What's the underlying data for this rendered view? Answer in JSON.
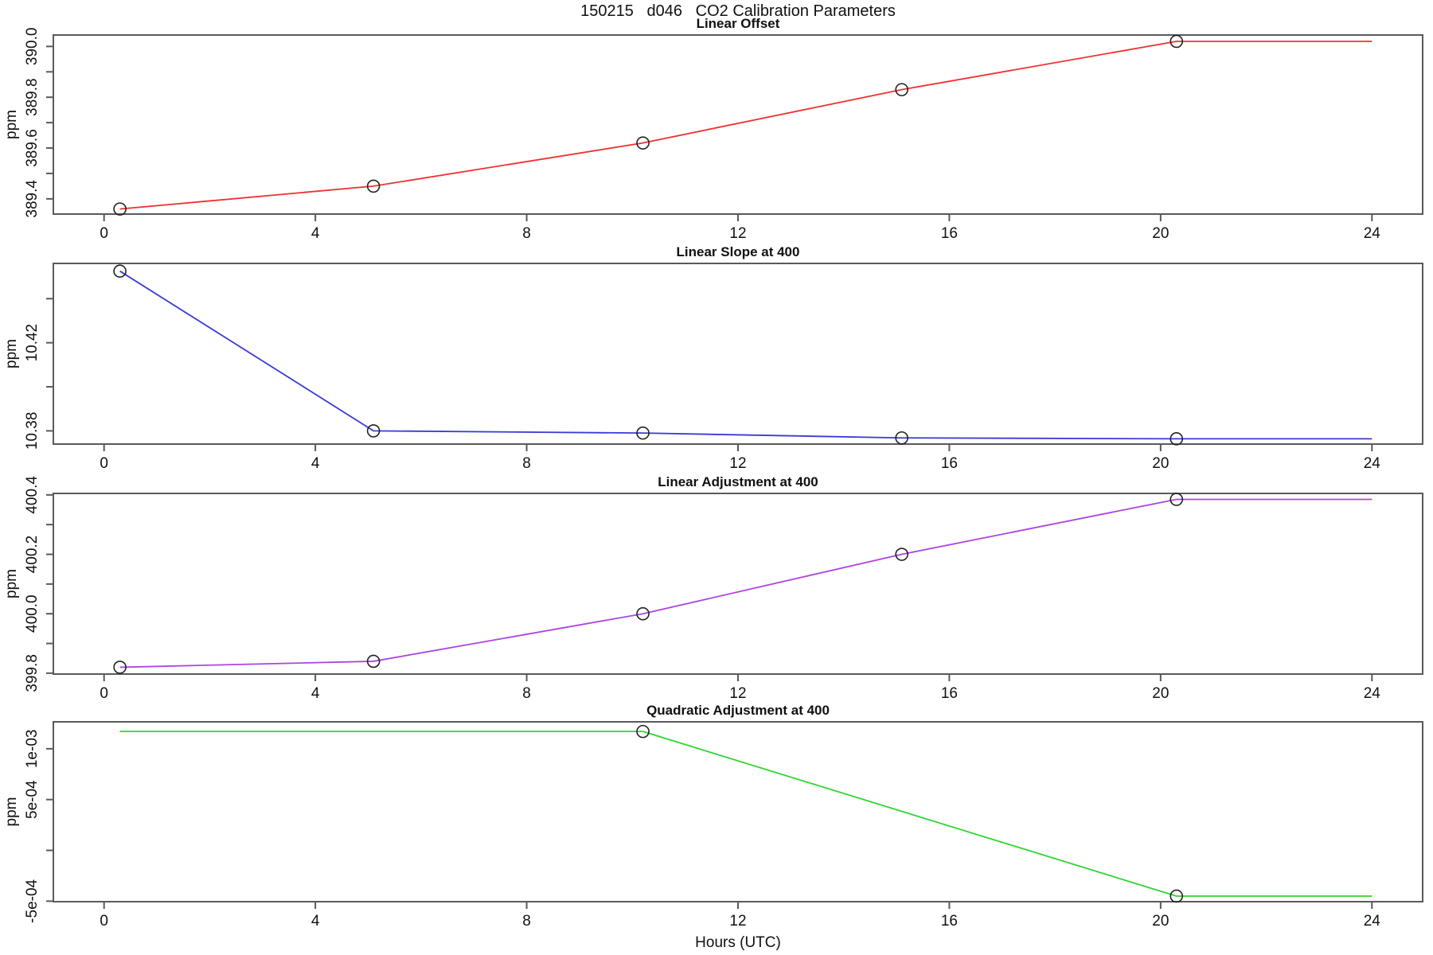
{
  "title": "150215   d046   CO2 Calibration Parameters",
  "xlabel": "Hours (UTC)",
  "colors": {
    "axis": "#5a5a5a",
    "text": "#111111",
    "marker": "#222222",
    "background": "#ffffff"
  },
  "chart_data": [
    {
      "type": "line",
      "title": "Linear Offset",
      "ylabel": "ppm",
      "color": "#f03030",
      "x": [
        0.3,
        5.1,
        10.2,
        15.1,
        20.3
      ],
      "y": [
        389.36,
        389.45,
        389.62,
        389.83,
        390.02
      ],
      "markers": [
        true,
        true,
        true,
        true,
        true
      ],
      "extend_to_x": 24,
      "xlim": [
        -0.96,
        24.96
      ],
      "ylim": [
        389.34,
        390.045
      ],
      "xticks": [
        {
          "v": 0,
          "label": "0"
        },
        {
          "v": 4,
          "label": "4"
        },
        {
          "v": 8,
          "label": "8"
        },
        {
          "v": 12,
          "label": "12"
        },
        {
          "v": 16,
          "label": "16"
        },
        {
          "v": 20,
          "label": "20"
        },
        {
          "v": 24,
          "label": "24"
        }
      ],
      "yticks": [
        {
          "v": 389.4,
          "label": "389.4"
        },
        {
          "v": 389.5,
          "label": ""
        },
        {
          "v": 389.6,
          "label": "389.6"
        },
        {
          "v": 389.7,
          "label": ""
        },
        {
          "v": 389.8,
          "label": "389.8"
        },
        {
          "v": 389.9,
          "label": ""
        },
        {
          "v": 390.0,
          "label": "390.0"
        }
      ]
    },
    {
      "type": "line",
      "title": "Linear Slope at 400",
      "ylabel": "ppm",
      "color": "#3a3ad6",
      "x": [
        0.3,
        5.1,
        10.2,
        15.1,
        20.3
      ],
      "y": [
        10.4525,
        10.38,
        10.379,
        10.3768,
        10.3764
      ],
      "markers": [
        true,
        true,
        true,
        true,
        true
      ],
      "extend_to_x": 24,
      "xlim": [
        -0.96,
        24.96
      ],
      "ylim": [
        10.374,
        10.456
      ],
      "xticks": [
        {
          "v": 0,
          "label": "0"
        },
        {
          "v": 4,
          "label": "4"
        },
        {
          "v": 8,
          "label": "8"
        },
        {
          "v": 12,
          "label": "12"
        },
        {
          "v": 16,
          "label": "16"
        },
        {
          "v": 20,
          "label": "20"
        },
        {
          "v": 24,
          "label": "24"
        }
      ],
      "yticks": [
        {
          "v": 10.38,
          "label": "10.38"
        },
        {
          "v": 10.4,
          "label": ""
        },
        {
          "v": 10.42,
          "label": "10.42"
        },
        {
          "v": 10.44,
          "label": ""
        }
      ]
    },
    {
      "type": "line",
      "title": "Linear Adjustment at 400",
      "ylabel": "ppm",
      "color": "#ad44e0",
      "x": [
        0.3,
        5.1,
        10.2,
        15.1,
        20.3
      ],
      "y": [
        399.82,
        399.84,
        400.0,
        400.2,
        400.385
      ],
      "markers": [
        true,
        true,
        true,
        true,
        true
      ],
      "extend_to_x": 24,
      "xlim": [
        -0.96,
        24.96
      ],
      "ylim": [
        399.797,
        400.405
      ],
      "xticks": [
        {
          "v": 0,
          "label": "0"
        },
        {
          "v": 4,
          "label": "4"
        },
        {
          "v": 8,
          "label": "8"
        },
        {
          "v": 12,
          "label": "12"
        },
        {
          "v": 16,
          "label": "16"
        },
        {
          "v": 20,
          "label": "20"
        },
        {
          "v": 24,
          "label": "24"
        }
      ],
      "yticks": [
        {
          "v": 399.8,
          "label": "399.8"
        },
        {
          "v": 399.9,
          "label": ""
        },
        {
          "v": 400.0,
          "label": "400.0"
        },
        {
          "v": 400.1,
          "label": ""
        },
        {
          "v": 400.2,
          "label": "400.2"
        },
        {
          "v": 400.3,
          "label": ""
        },
        {
          "v": 400.4,
          "label": "400.4"
        }
      ]
    },
    {
      "type": "line",
      "title": "Quadratic Adjustment at 400",
      "ylabel": "ppm",
      "color": "#30d430",
      "x": [
        0.3,
        10.2,
        20.3
      ],
      "y": [
        0.00117,
        0.00117,
        -0.00045
      ],
      "markers": [
        false,
        true,
        true
      ],
      "extend_to_x": 24,
      "xlim": [
        -0.96,
        24.96
      ],
      "ylim": [
        -0.000505,
        0.001265
      ],
      "xticks": [
        {
          "v": 0,
          "label": "0"
        },
        {
          "v": 4,
          "label": "4"
        },
        {
          "v": 8,
          "label": "8"
        },
        {
          "v": 12,
          "label": "12"
        },
        {
          "v": 16,
          "label": "16"
        },
        {
          "v": 20,
          "label": "20"
        },
        {
          "v": 24,
          "label": "24"
        }
      ],
      "yticks": [
        {
          "v": -0.0005,
          "label": "-5e-04"
        },
        {
          "v": 0,
          "label": ""
        },
        {
          "v": 0.0005,
          "label": "5e-04"
        },
        {
          "v": 0.001,
          "label": "1e-03"
        }
      ]
    }
  ]
}
